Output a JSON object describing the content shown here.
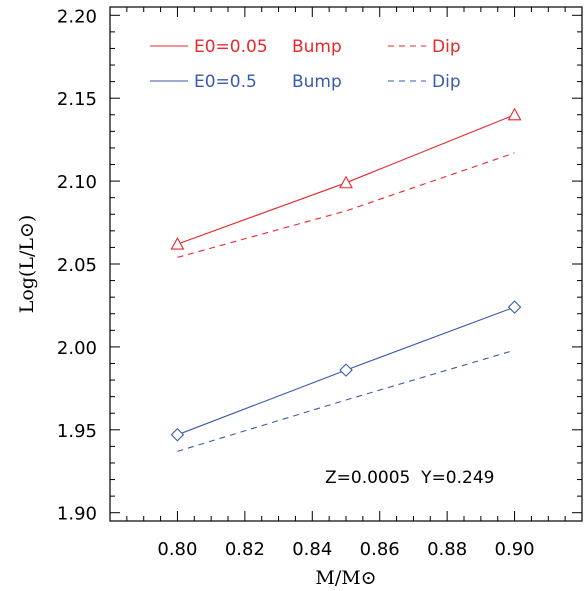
{
  "chart_data": {
    "type": "line",
    "xlabel": "M/M⊙",
    "ylabel": "Log(L/L⊙)",
    "xlim": [
      0.78,
      0.92
    ],
    "ylim": [
      1.895,
      2.205
    ],
    "xticks": [
      "0.80",
      "0.82",
      "0.84",
      "0.86",
      "0.88",
      "0.90"
    ],
    "xtick_values": [
      0.8,
      0.82,
      0.84,
      0.86,
      0.88,
      0.9
    ],
    "yticks": [
      "1.90",
      "1.95",
      "2.00",
      "2.05",
      "2.10",
      "2.15",
      "2.20"
    ],
    "ytick_values": [
      1.9,
      1.95,
      2.0,
      2.05,
      2.1,
      2.15,
      2.2
    ],
    "grid": false,
    "legend_position": "top-left",
    "annotation": "Z=0.0005  Y=0.249",
    "series": [
      {
        "group_label": "E0=0.05",
        "name": "Bump",
        "color": "#e8282d",
        "line_style": "solid",
        "marker": "triangle",
        "x": [
          0.8,
          0.85,
          0.9
        ],
        "y": [
          2.062,
          2.099,
          2.14
        ]
      },
      {
        "group_label": "E0=0.05",
        "name": "Dip",
        "color": "#e8282d",
        "line_style": "dashed",
        "marker": "none",
        "x": [
          0.8,
          0.85,
          0.9
        ],
        "y": [
          2.054,
          2.082,
          2.117
        ]
      },
      {
        "group_label": "E0=0.5",
        "name": "Bump",
        "color": "#3a5bab",
        "line_style": "solid",
        "marker": "diamond",
        "x": [
          0.8,
          0.85,
          0.9
        ],
        "y": [
          1.947,
          1.986,
          2.024
        ]
      },
      {
        "group_label": "E0=0.5",
        "name": "Dip",
        "color": "#3a5bab",
        "line_style": "dashed",
        "marker": "none",
        "x": [
          0.8,
          0.85,
          0.9
        ],
        "y": [
          1.937,
          1.968,
          1.998
        ]
      }
    ]
  }
}
